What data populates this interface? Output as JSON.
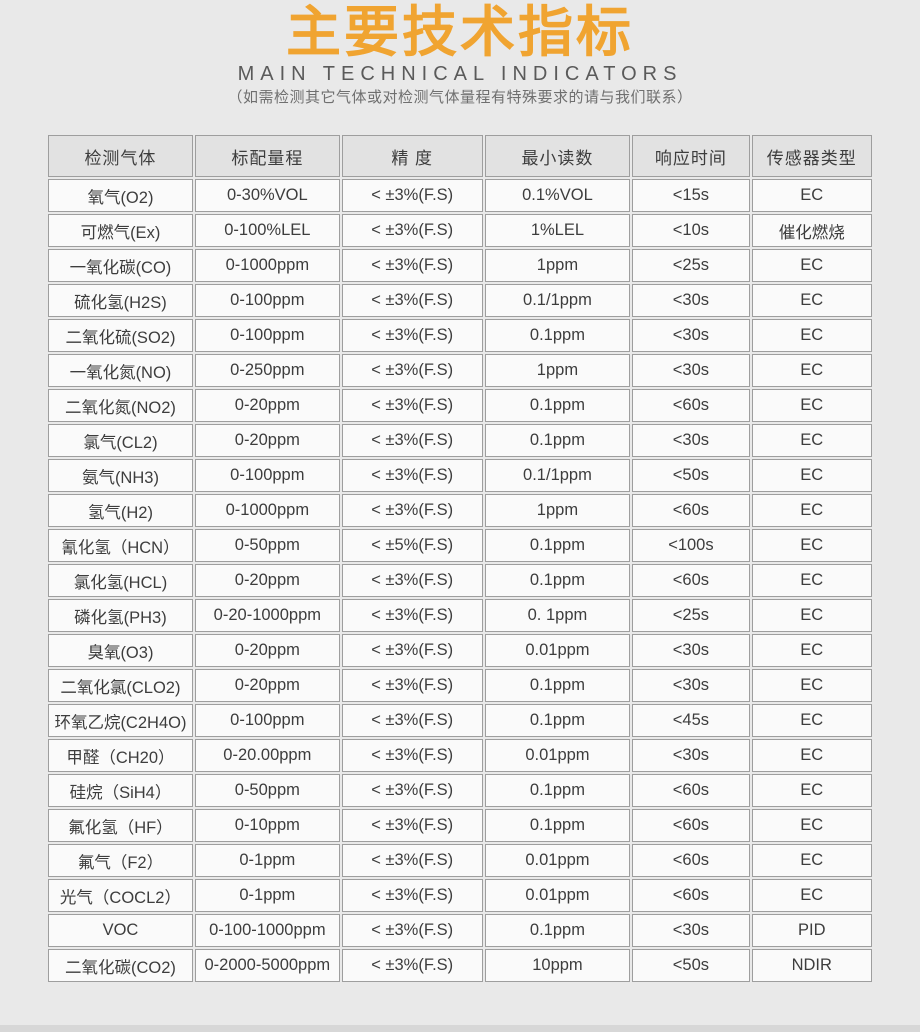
{
  "header": {
    "title": "主要技术指标",
    "subtitle": "MAIN TECHNICAL INDICATORS",
    "note": "（如需检测其它气体或对检测气体量程有特殊要求的请与我们联系）"
  },
  "colors": {
    "accent": "#f0a431",
    "page_background": "#e9e9e9",
    "header_cell_background": "#e2e2e2",
    "data_cell_background": "#fafafa",
    "cell_border": "#9e9e9e",
    "text": "#3d3d3d"
  },
  "table": {
    "columns": [
      "检测气体",
      "标配量程",
      "精 度",
      "最小读数",
      "响应时间",
      "传感器类型"
    ],
    "rows": [
      [
        "氧气(O2)",
        "0-30%VOL",
        "< ±3%(F.S)",
        "0.1%VOL",
        "<15s",
        "EC"
      ],
      [
        "可燃气(Ex)",
        "0-100%LEL",
        "< ±3%(F.S)",
        "1%LEL",
        "<10s",
        "催化燃烧"
      ],
      [
        "一氧化碳(CO)",
        "0-1000ppm",
        "< ±3%(F.S)",
        "1ppm",
        "<25s",
        "EC"
      ],
      [
        "硫化氢(H2S)",
        "0-100ppm",
        "< ±3%(F.S)",
        "0.1/1ppm",
        "<30s",
        "EC"
      ],
      [
        "二氧化硫(SO2)",
        "0-100ppm",
        "< ±3%(F.S)",
        "0.1ppm",
        "<30s",
        "EC"
      ],
      [
        "一氧化氮(NO)",
        "0-250ppm",
        "< ±3%(F.S)",
        "1ppm",
        "<30s",
        "EC"
      ],
      [
        "二氧化氮(NO2)",
        "0-20ppm",
        "< ±3%(F.S)",
        "0.1ppm",
        "<60s",
        "EC"
      ],
      [
        "氯气(CL2)",
        "0-20ppm",
        "< ±3%(F.S)",
        "0.1ppm",
        "<30s",
        "EC"
      ],
      [
        "氨气(NH3)",
        "0-100ppm",
        "< ±3%(F.S)",
        "0.1/1ppm",
        "<50s",
        "EC"
      ],
      [
        "氢气(H2)",
        "0-1000ppm",
        "< ±3%(F.S)",
        "1ppm",
        "<60s",
        "EC"
      ],
      [
        "氰化氢（HCN）",
        "0-50ppm",
        "< ±5%(F.S)",
        "0.1ppm",
        "<100s",
        "EC"
      ],
      [
        "氯化氢(HCL)",
        "0-20ppm",
        "< ±3%(F.S)",
        "0.1ppm",
        "<60s",
        "EC"
      ],
      [
        "磷化氢(PH3)",
        "0-20-1000ppm",
        "< ±3%(F.S)",
        "0. 1ppm",
        "<25s",
        "EC"
      ],
      [
        "臭氧(O3)",
        "0-20ppm",
        "< ±3%(F.S)",
        "0.01ppm",
        "<30s",
        "EC"
      ],
      [
        "二氧化氯(CLO2)",
        "0-20ppm",
        "< ±3%(F.S)",
        "0.1ppm",
        "<30s",
        "EC"
      ],
      [
        "环氧乙烷(C2H4O)",
        "0-100ppm",
        "< ±3%(F.S)",
        "0.1ppm",
        "<45s",
        "EC"
      ],
      [
        "甲醛（CH20）",
        "0-20.00ppm",
        "< ±3%(F.S)",
        "0.01ppm",
        "<30s",
        "EC"
      ],
      [
        "硅烷（SiH4）",
        "0-50ppm",
        "< ±3%(F.S)",
        "0.1ppm",
        "<60s",
        "EC"
      ],
      [
        "氟化氢（HF）",
        "0-10ppm",
        "< ±3%(F.S)",
        "0.1ppm",
        "<60s",
        "EC"
      ],
      [
        "氟气（F2）",
        "0-1ppm",
        "< ±3%(F.S)",
        "0.01ppm",
        "<60s",
        "EC"
      ],
      [
        "光气（COCL2）",
        "0-1ppm",
        "< ±3%(F.S)",
        "0.01ppm",
        "<60s",
        "EC"
      ],
      [
        "VOC",
        "0-100-1000ppm",
        "< ±3%(F.S)",
        "0.1ppm",
        "<30s",
        "PID"
      ],
      [
        "二氧化碳(CO2)",
        "0-2000-5000ppm",
        "< ±3%(F.S)",
        "10ppm",
        "<50s",
        "NDIR"
      ]
    ]
  }
}
